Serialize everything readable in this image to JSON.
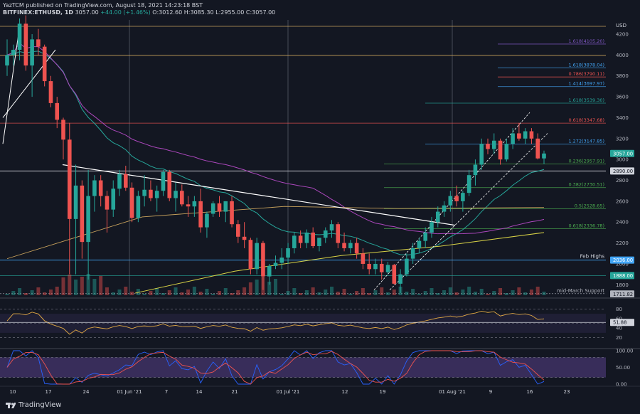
{
  "header": {
    "line1": "YazTCM published on TradingView.com, August 18, 2021 14:23:18 BST",
    "symbol": "BITFINEX:ETHUSD, 1D",
    "price": "3057.00",
    "change": "+44.00 (+1.46%)",
    "ohlc": "O:3012.60 H:3085.30 L:2955.00 C:3057.00"
  },
  "footer": {
    "brand": "TradingView"
  },
  "colors": {
    "background": "#131722",
    "up": "#26a69a",
    "down": "#ef5350",
    "ema20": "#26a69a",
    "sma50": "#ab47bc",
    "sma100": "#c8a25c",
    "sma200": "#d8d246",
    "rsi": "#e0a844",
    "stoch_k": "#2962ff",
    "stoch_d": "#ef5350",
    "fib_green": "#4caf50",
    "fib_red": "#ef5350",
    "fib_blue": "#42a5f5",
    "fib_purple": "#7e57c2"
  },
  "chart_data": {
    "type": "candlestick",
    "y_axis_label": "USD",
    "ylim": [
      1700,
      4350
    ],
    "y_ticks": [
      1800,
      2000,
      2200,
      2400,
      2600,
      2800,
      3000,
      3200,
      3400,
      3600,
      3800,
      4000,
      4200
    ],
    "x_tick_labels": [
      "10",
      "17",
      "24",
      "01 Jun '21",
      "7",
      "14",
      "21",
      "01 Jul '21",
      "12",
      "19",
      "01 Aug '21",
      "9",
      "16",
      "23"
    ],
    "candles": [
      [
        3900,
        4150,
        3800,
        4000
      ],
      [
        4000,
        4100,
        3900,
        4050
      ],
      [
        4050,
        4350,
        3950,
        4300
      ],
      [
        4300,
        4380,
        3850,
        3900
      ],
      [
        3900,
        4200,
        3600,
        4150
      ],
      [
        4150,
        4250,
        4000,
        4080
      ],
      [
        4080,
        4100,
        3700,
        3750
      ],
      [
        3750,
        3800,
        3500,
        3540
      ],
      [
        3540,
        3600,
        3300,
        3380
      ],
      [
        3380,
        3400,
        3000,
        3190
      ],
      [
        3190,
        3350,
        1900,
        2430
      ],
      [
        2430,
        2950,
        1900,
        2750
      ],
      [
        2750,
        2800,
        2050,
        2210
      ],
      [
        2210,
        2900,
        1850,
        2650
      ],
      [
        2650,
        2850,
        2500,
        2800
      ],
      [
        2800,
        2850,
        2550,
        2650
      ],
      [
        2650,
        2700,
        2300,
        2520
      ],
      [
        2520,
        2800,
        2450,
        2720
      ],
      [
        2720,
        2900,
        2650,
        2860
      ],
      [
        2860,
        2940,
        2700,
        2730
      ],
      [
        2730,
        2780,
        2400,
        2440
      ],
      [
        2440,
        2700,
        2400,
        2650
      ],
      [
        2650,
        2850,
        2550,
        2710
      ],
      [
        2710,
        2800,
        2600,
        2630
      ],
      [
        2630,
        2750,
        2500,
        2700
      ],
      [
        2700,
        2900,
        2650,
        2880
      ],
      [
        2880,
        2900,
        2600,
        2630
      ],
      [
        2630,
        2780,
        2500,
        2700
      ],
      [
        2700,
        2760,
        2550,
        2570
      ],
      [
        2570,
        2650,
        2450,
        2550
      ],
      [
        2550,
        2650,
        2450,
        2600
      ],
      [
        2600,
        2720,
        2300,
        2350
      ],
      [
        2350,
        2500,
        2250,
        2480
      ],
      [
        2480,
        2600,
        2450,
        2580
      ],
      [
        2580,
        2650,
        2450,
        2500
      ],
      [
        2500,
        2600,
        2400,
        2600
      ],
      [
        2600,
        2650,
        2350,
        2380
      ],
      [
        2380,
        2420,
        2200,
        2260
      ],
      [
        2260,
        2400,
        2150,
        2230
      ],
      [
        2230,
        2250,
        1900,
        1950
      ],
      [
        1950,
        2250,
        1900,
        2200
      ],
      [
        2200,
        2220,
        1750,
        1880
      ],
      [
        1880,
        2000,
        1800,
        1980
      ],
      [
        1980,
        2080,
        1950,
        2010
      ],
      [
        2010,
        2150,
        1950,
        2060
      ],
      [
        2060,
        2200,
        2000,
        2150
      ],
      [
        2150,
        2300,
        2100,
        2270
      ],
      [
        2270,
        2320,
        2150,
        2200
      ],
      [
        2200,
        2330,
        2150,
        2300
      ],
      [
        2300,
        2350,
        2150,
        2170
      ],
      [
        2170,
        2250,
        2120,
        2250
      ],
      [
        2250,
        2350,
        2200,
        2320
      ],
      [
        2320,
        2420,
        2250,
        2380
      ],
      [
        2380,
        2400,
        2150,
        2200
      ],
      [
        2200,
        2300,
        2120,
        2150
      ],
      [
        2150,
        2230,
        2100,
        2200
      ],
      [
        2200,
        2250,
        2050,
        2100
      ],
      [
        2100,
        2150,
        1950,
        2000
      ],
      [
        2000,
        2100,
        1900,
        1950
      ],
      [
        1950,
        2050,
        1900,
        2000
      ],
      [
        2000,
        2050,
        1850,
        1920
      ],
      [
        1920,
        2020,
        1900,
        1990
      ],
      [
        1990,
        2000,
        1800,
        1810
      ],
      [
        1810,
        1950,
        1720,
        1900
      ],
      [
        1900,
        2100,
        1880,
        2050
      ],
      [
        2050,
        2200,
        2000,
        2150
      ],
      [
        2150,
        2250,
        2100,
        2220
      ],
      [
        2220,
        2350,
        2150,
        2300
      ],
      [
        2300,
        2450,
        2250,
        2400
      ],
      [
        2400,
        2550,
        2350,
        2500
      ],
      [
        2500,
        2600,
        2450,
        2560
      ],
      [
        2560,
        2700,
        2500,
        2650
      ],
      [
        2650,
        2750,
        2550,
        2600
      ],
      [
        2600,
        2700,
        2500,
        2680
      ],
      [
        2680,
        2900,
        2650,
        2850
      ],
      [
        2850,
        3000,
        2750,
        2950
      ],
      [
        2950,
        3200,
        2900,
        3150
      ],
      [
        3150,
        3200,
        3050,
        3100
      ],
      [
        3100,
        3250,
        3050,
        3180
      ],
      [
        3180,
        3200,
        2950,
        3000
      ],
      [
        3000,
        3200,
        2980,
        3150
      ],
      [
        3150,
        3300,
        3100,
        3250
      ],
      [
        3250,
        3350,
        3180,
        3200
      ],
      [
        3200,
        3300,
        3150,
        3270
      ],
      [
        3270,
        3300,
        3150,
        3200
      ],
      [
        3200,
        3250,
        3000,
        3010
      ],
      [
        3010,
        3085,
        2955,
        3057
      ]
    ],
    "series": [
      {
        "name": "EMA 20"
      },
      {
        "name": "SMA 50"
      },
      {
        "name": "SMA 100"
      },
      {
        "name": "SMA 200"
      }
    ],
    "price_labels": [
      {
        "label": "3057.00",
        "value": 3057
      },
      {
        "label": "2890.00",
        "value": 2890
      },
      {
        "label": "2036.00",
        "value": 2036
      },
      {
        "label": "1888.00",
        "value": 1888
      },
      {
        "label": "1711.82",
        "value": 1711.82
      }
    ],
    "fib_levels": [
      {
        "label": "1.618(4105.20)",
        "value": 4105.2,
        "color": "#7e57c2"
      },
      {
        "label": "1.618(3878.04)",
        "value": 3878.04,
        "color": "#42a5f5"
      },
      {
        "label": "0.786(3790.11)",
        "value": 3790.11,
        "color": "#ef5350"
      },
      {
        "label": "1.414(3697.97)",
        "value": 3697.97,
        "color": "#42a5f5"
      },
      {
        "label": "1.618(3539.30)",
        "value": 3539.3,
        "color": "#26a69a"
      },
      {
        "label": "0.618(3347.68)",
        "value": 3347.68,
        "color": "#ef5350"
      },
      {
        "label": "1.272(3147.85)",
        "value": 3147.85,
        "color": "#42a5f5"
      },
      {
        "label": "0.236(2957.91)",
        "value": 2957.91,
        "color": "#4caf50"
      },
      {
        "label": "0.382(2730.51)",
        "value": 2730.51,
        "color": "#4caf50"
      },
      {
        "label": "0.5(2528.65)",
        "value": 2528.65,
        "color": "#4caf50"
      },
      {
        "label": "0.618(2336.78)",
        "value": 2336.78,
        "color": "#4caf50"
      }
    ],
    "annotations": [
      "Feb Highs",
      "mid-March Support"
    ],
    "rsi": {
      "ylim": [
        0,
        100
      ],
      "y_ticks": [
        20,
        40,
        60,
        80
      ],
      "current_label": "51.88",
      "current": 51.88
    },
    "stoch": {
      "ylim": [
        0,
        100
      ],
      "y_ticks": [
        "0.00",
        "50.00",
        "100.00"
      ]
    }
  }
}
